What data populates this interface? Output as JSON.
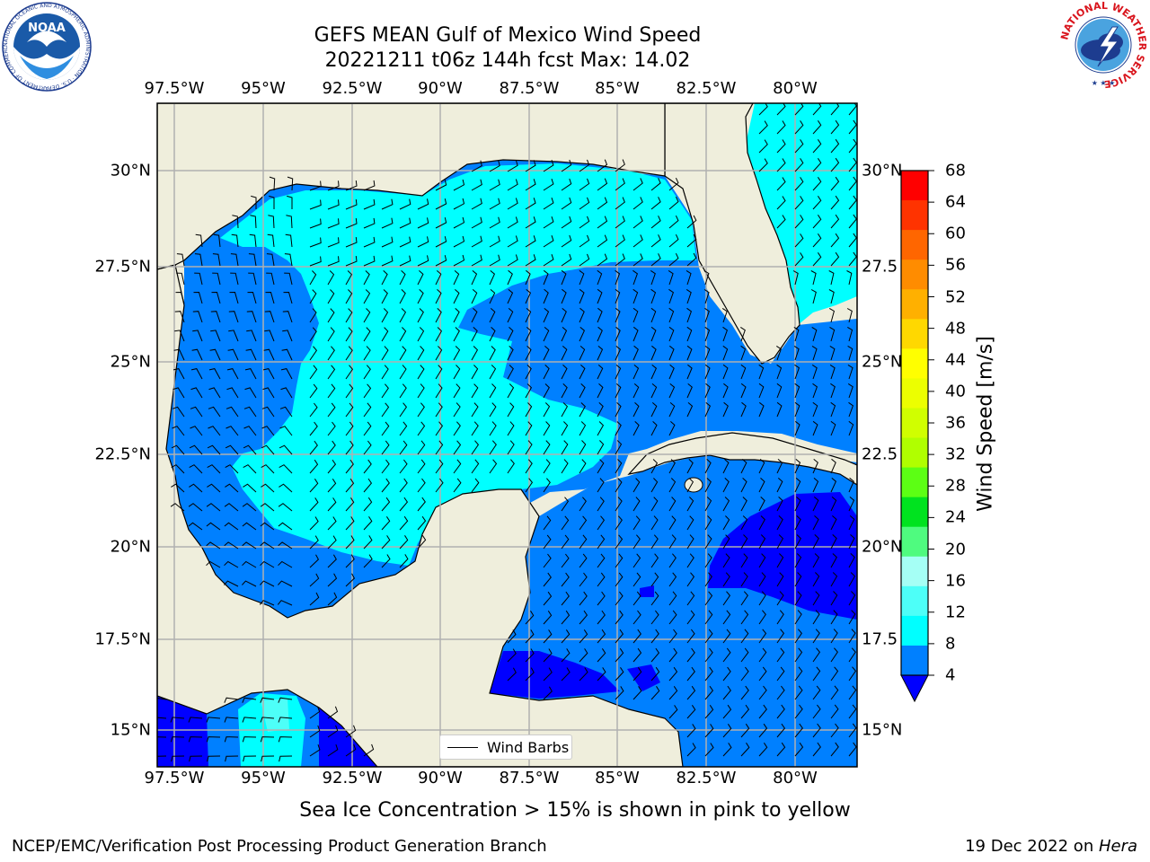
{
  "header": {
    "title": "GEFS MEAN Gulf of Mexico Wind Speed",
    "subtitle": "20221211 t06z 144h fcst   Max: 14.02"
  },
  "map": {
    "lon_ticks": [
      "97.5°W",
      "95°W",
      "92.5°W",
      "90°W",
      "87.5°W",
      "85°W",
      "82.5°W",
      "80°W"
    ],
    "lat_ticks": [
      "30°N",
      "27.5°N",
      "25°N",
      "22.5°N",
      "20°N",
      "17.5°N",
      "15°N"
    ],
    "lat_ticks_right": [
      "30°N",
      "27.5",
      "25°N",
      "22.5",
      "20°N",
      "17.5",
      "15°N"
    ],
    "legend_label": "Wind Barbs",
    "colors": {
      "land": "#efeedc",
      "band_4_8": "#0080ff",
      "band_8_12": "#00ffff",
      "band_0_4": "#0000ff"
    }
  },
  "colorbar": {
    "label": "Wind Speed [m/s]",
    "levels": [
      "68",
      "64",
      "60",
      "56",
      "52",
      "48",
      "44",
      "40",
      "36",
      "32",
      "28",
      "24",
      "20",
      "16",
      "12",
      "8",
      "4"
    ],
    "colors": [
      "#ff0000",
      "#ff3300",
      "#ff6600",
      "#ff8c00",
      "#ffb000",
      "#ffd800",
      "#ffff00",
      "#ecff00",
      "#d0ff00",
      "#b0ff00",
      "#5cff14",
      "#00e31f",
      "#4ffb7f",
      "#a5fff5",
      "#4dfff8",
      "#00ffff",
      "#0080ff"
    ],
    "under_color": "#0000ff"
  },
  "footer": {
    "note": "Sea Ice Concentration > 15% is shown in pink to yellow",
    "left": "NCEP/EMC/Verification Post Processing Product Generation Branch",
    "right_prefix": "19 Dec 2022 on ",
    "right_host": "Hera"
  },
  "logos": {
    "noaa_text": "NOAA",
    "noaa_ring": "NATIONAL OCEANIC AND ATMOSPHERIC ADMINISTRATION · U.S. DEPARTMENT OF COMMERCE",
    "nws_ring": "NATIONAL WEATHER SERVICE"
  }
}
